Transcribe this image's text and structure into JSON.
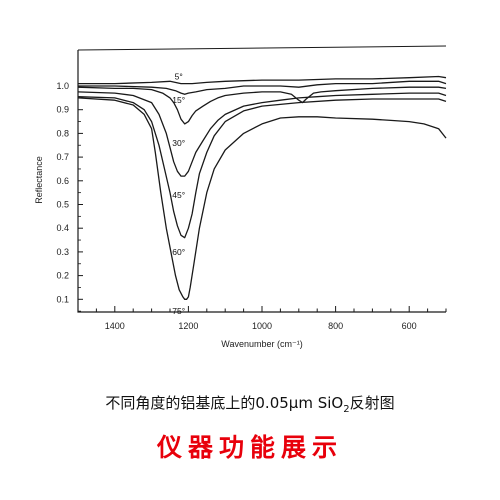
{
  "chart_data": {
    "type": "line",
    "xlabel": "Wavenumber (cm⁻¹)",
    "ylabel": "Reflectance",
    "xlim": [
      1500,
      500
    ],
    "ylim": [
      0.0,
      1.1
    ],
    "x_ticks": [
      1400,
      1200,
      1000,
      800,
      600
    ],
    "y_ticks": [
      0.1,
      0.2,
      0.3,
      0.4,
      0.5,
      0.6,
      0.7,
      0.8,
      0.9,
      1.0
    ],
    "grid": false,
    "series": [
      {
        "name": "5°",
        "label_at": [
          1210,
          1.04
        ],
        "x": [
          1500,
          1400,
          1300,
          1250,
          1220,
          1210,
          1190,
          1150,
          1100,
          1000,
          900,
          800,
          700,
          600,
          520,
          500
        ],
        "y": [
          1.01,
          1.01,
          1.015,
          1.02,
          1.01,
          1.01,
          1.01,
          1.015,
          1.02,
          1.025,
          1.025,
          1.03,
          1.03,
          1.035,
          1.04,
          1.035
        ]
      },
      {
        "name": "15°",
        "label_at": [
          1210,
          0.94
        ],
        "x": [
          1500,
          1400,
          1300,
          1260,
          1235,
          1220,
          1210,
          1200,
          1180,
          1150,
          1100,
          1050,
          1000,
          950,
          900,
          850,
          800,
          700,
          600,
          520,
          500
        ],
        "y": [
          1.0,
          1.0,
          0.995,
          0.99,
          0.98,
          0.97,
          0.965,
          0.97,
          0.975,
          0.985,
          0.99,
          1.0,
          1.0,
          1.0,
          0.995,
          1.005,
          1.01,
          1.01,
          1.02,
          1.02,
          1.01
        ]
      },
      {
        "name": "30°",
        "label_at": [
          1210,
          0.76
        ],
        "x": [
          1500,
          1400,
          1350,
          1300,
          1270,
          1250,
          1240,
          1230,
          1220,
          1210,
          1200,
          1190,
          1180,
          1160,
          1140,
          1120,
          1100,
          1050,
          1000,
          950,
          920,
          900,
          890,
          880,
          860,
          840,
          800,
          700,
          600,
          520,
          500
        ],
        "y": [
          0.995,
          0.99,
          0.99,
          0.985,
          0.97,
          0.95,
          0.93,
          0.9,
          0.86,
          0.84,
          0.85,
          0.875,
          0.895,
          0.915,
          0.935,
          0.95,
          0.96,
          0.97,
          0.975,
          0.975,
          0.965,
          0.94,
          0.93,
          0.945,
          0.97,
          0.975,
          0.98,
          0.99,
          0.995,
          0.995,
          0.99
        ]
      },
      {
        "name": "45°",
        "label_at": [
          1210,
          0.54
        ],
        "x": [
          1500,
          1400,
          1350,
          1300,
          1280,
          1260,
          1250,
          1240,
          1230,
          1220,
          1210,
          1200,
          1190,
          1180,
          1160,
          1140,
          1120,
          1100,
          1050,
          1000,
          950,
          900,
          850,
          800,
          700,
          600,
          520,
          500
        ],
        "y": [
          0.975,
          0.97,
          0.96,
          0.93,
          0.88,
          0.8,
          0.74,
          0.68,
          0.64,
          0.62,
          0.62,
          0.64,
          0.68,
          0.72,
          0.77,
          0.82,
          0.855,
          0.88,
          0.915,
          0.93,
          0.94,
          0.95,
          0.955,
          0.96,
          0.965,
          0.97,
          0.97,
          0.96
        ]
      },
      {
        "name": "60°",
        "label_at": [
          1210,
          0.3
        ],
        "x": [
          1500,
          1400,
          1350,
          1320,
          1300,
          1280,
          1265,
          1250,
          1240,
          1230,
          1220,
          1210,
          1200,
          1190,
          1180,
          1170,
          1150,
          1130,
          1100,
          1050,
          1000,
          900,
          800,
          700,
          600,
          520,
          500
        ],
        "y": [
          0.955,
          0.95,
          0.93,
          0.9,
          0.85,
          0.75,
          0.65,
          0.55,
          0.47,
          0.41,
          0.37,
          0.36,
          0.4,
          0.46,
          0.55,
          0.63,
          0.72,
          0.79,
          0.85,
          0.895,
          0.915,
          0.93,
          0.94,
          0.945,
          0.945,
          0.945,
          0.935
        ]
      },
      {
        "name": "75°",
        "label_at": [
          1210,
          0.05
        ],
        "x": [
          1500,
          1400,
          1350,
          1320,
          1300,
          1290,
          1275,
          1260,
          1245,
          1235,
          1225,
          1215,
          1210,
          1205,
          1200,
          1195,
          1185,
          1170,
          1150,
          1130,
          1100,
          1050,
          1000,
          950,
          900,
          850,
          800,
          700,
          650,
          600,
          560,
          520,
          500
        ],
        "y": [
          0.95,
          0.94,
          0.92,
          0.88,
          0.82,
          0.72,
          0.55,
          0.4,
          0.28,
          0.2,
          0.14,
          0.11,
          0.1,
          0.1,
          0.11,
          0.15,
          0.25,
          0.4,
          0.55,
          0.65,
          0.73,
          0.8,
          0.84,
          0.865,
          0.87,
          0.87,
          0.865,
          0.86,
          0.855,
          0.85,
          0.84,
          0.82,
          0.78
        ]
      }
    ]
  },
  "caption": {
    "text_before": "不同角度的铝基底上的0.05μm   SiO",
    "subscript": "2",
    "text_after": "反射图"
  },
  "subtitle": "仪器功能展示",
  "colors": {
    "line": "#1a1a1a",
    "subtitle": "#e8000b"
  }
}
